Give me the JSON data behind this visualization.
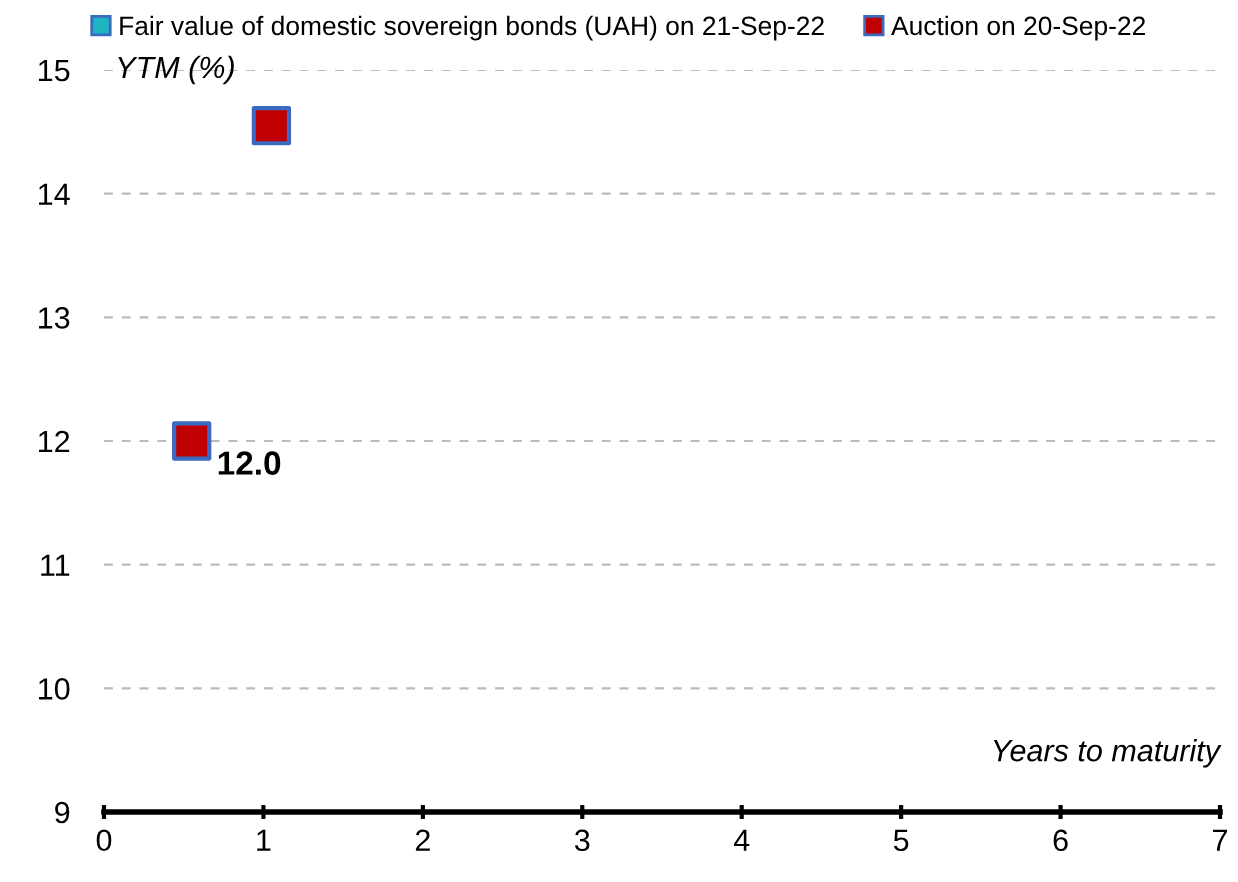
{
  "chart_data": {
    "type": "scatter",
    "xlabel": "Years to maturity",
    "ylabel": "YTM (%)",
    "series": [
      {
        "name": "Fair value of domestic sovereign bonds (UAH) on 21-Sep-22",
        "color": "#1fb5c0"
      },
      {
        "name": "Auction on 20-Sep-22",
        "color": "#c00000",
        "x": [
          0.55,
          1.05
        ],
        "values": [
          12.0,
          14.55
        ],
        "value_labels": [
          "12.0",
          null
        ]
      }
    ],
    "xlim": [
      0,
      7
    ],
    "xticks": [
      0,
      1,
      2,
      3,
      4,
      5,
      6,
      7
    ],
    "ylim": [
      9,
      15
    ],
    "yticks": [
      9,
      10,
      11,
      12,
      13,
      14,
      15
    ],
    "grid": "y",
    "legend": "top",
    "marker": "square"
  }
}
